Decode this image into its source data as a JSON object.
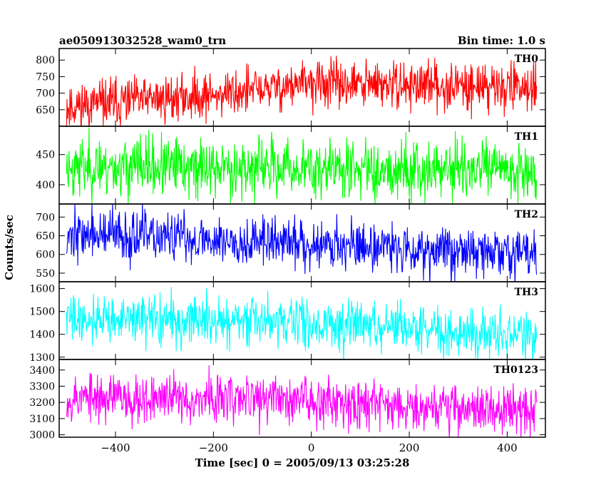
{
  "chart_data": {
    "type": "line",
    "title": "ae050913032528_wam0_trn",
    "subtitle": "Bin time: 1.0 s",
    "xlabel": "Time [sec] 0 = 2005/09/13 03:25:28",
    "ylabel": "Counts/sec",
    "xlim": [
      -515,
      478
    ],
    "x_range": [
      -500,
      460
    ],
    "x_ticks": [
      -400,
      -200,
      0,
      200,
      400
    ],
    "x_tick_labels": [
      "−400",
      "−200",
      "0",
      "200",
      "400"
    ],
    "panels": [
      {
        "name": "TH0",
        "color": "#ff0000",
        "ylim": [
          600,
          835
        ],
        "ticks": [
          650,
          700,
          750,
          800
        ],
        "trend": [
          [
            -500,
            660
          ],
          [
            -200,
            695
          ],
          [
            0,
            730
          ],
          [
            100,
            725
          ],
          [
            460,
            720
          ]
        ],
        "noise": 35,
        "seed": 11
      },
      {
        "name": "TH1",
        "color": "#00ff00",
        "ylim": [
          368,
          497
        ],
        "ticks": [
          400,
          450
        ],
        "trend": [
          [
            -500,
            430
          ],
          [
            460,
            425
          ]
        ],
        "noise": 24,
        "seed": 23
      },
      {
        "name": "TH2",
        "color": "#0000ff",
        "ylim": [
          527,
          735
        ],
        "ticks": [
          550,
          600,
          650,
          700
        ],
        "trend": [
          [
            -500,
            655
          ],
          [
            0,
            630
          ],
          [
            460,
            600
          ]
        ],
        "noise": 33,
        "seed": 37
      },
      {
        "name": "TH3",
        "color": "#00ffff",
        "ylim": [
          1290,
          1630
        ],
        "ticks": [
          1300,
          1400,
          1500,
          1600
        ],
        "trend": [
          [
            -500,
            1470
          ],
          [
            0,
            1450
          ],
          [
            460,
            1390
          ]
        ],
        "noise": 52,
        "seed": 41
      },
      {
        "name": "TH0123",
        "color": "#ff00ff",
        "ylim": [
          2985,
          3465
        ],
        "ticks": [
          3000,
          3100,
          3200,
          3300,
          3400
        ],
        "trend": [
          [
            -500,
            3230
          ],
          [
            0,
            3220
          ],
          [
            460,
            3140
          ]
        ],
        "noise": 75,
        "seed": 53
      }
    ]
  }
}
